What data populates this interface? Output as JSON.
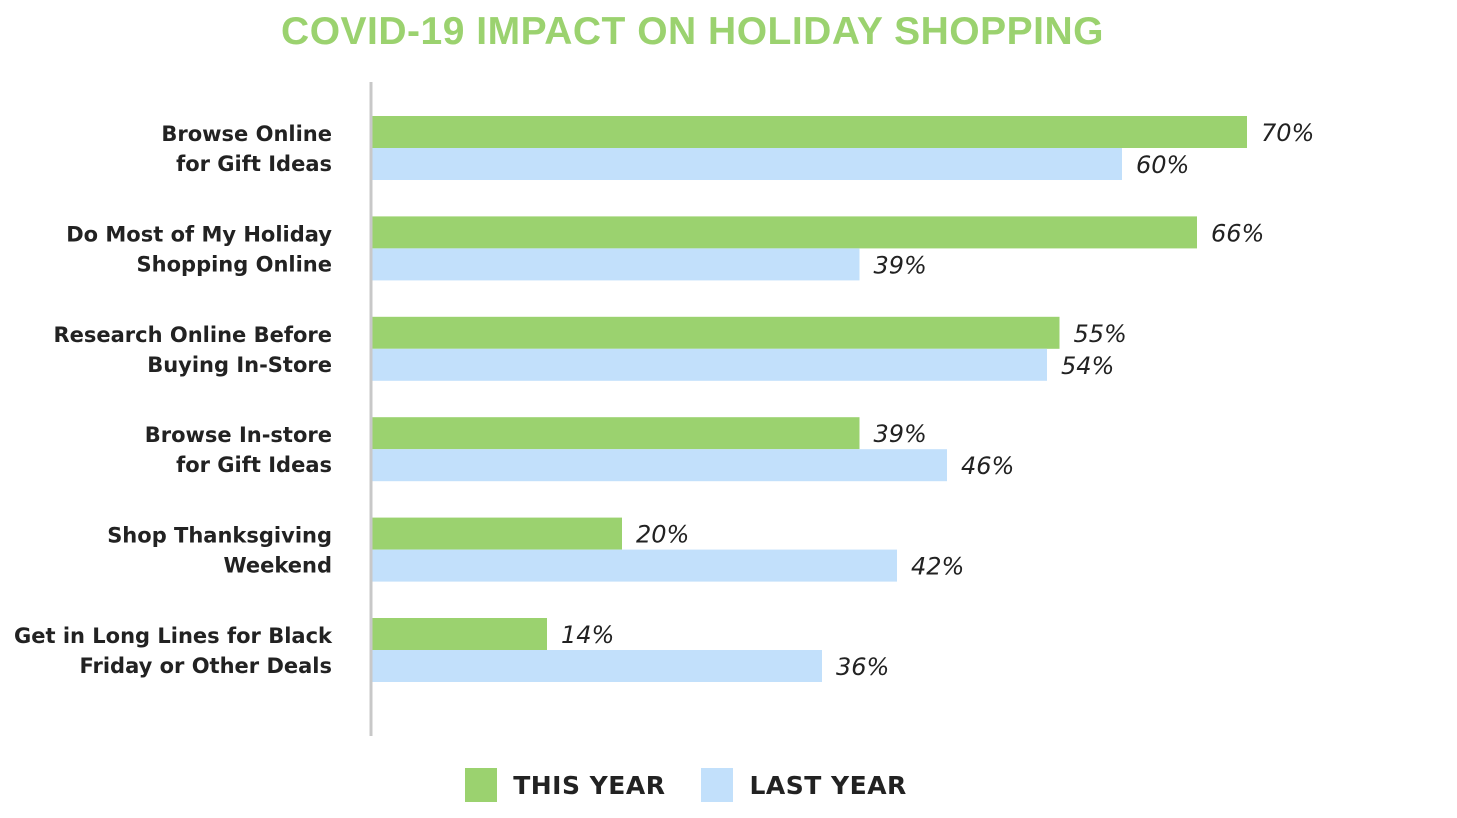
{
  "chart_data": {
    "type": "bar",
    "orientation": "horizontal",
    "title": "COVID-19 IMPACT ON HOLIDAY SHOPPING",
    "categories": [
      [
        "Browse Online",
        "for Gift Ideas"
      ],
      [
        "Do Most of My Holiday",
        "Shopping Online"
      ],
      [
        "Research Online Before",
        "Buying In-Store"
      ],
      [
        "Browse In-store",
        "for Gift Ideas"
      ],
      [
        "Shop Thanksgiving",
        "Weekend"
      ],
      [
        "Get in Long Lines for Black",
        "Friday or Other Deals"
      ]
    ],
    "series": [
      {
        "name": "THIS YEAR",
        "color": "#9bd26f",
        "values": [
          70,
          66,
          55,
          39,
          20,
          14
        ],
        "labels": [
          "70%",
          "66%",
          "55%",
          "39%",
          "20%",
          "14%"
        ]
      },
      {
        "name": "LAST YEAR",
        "color": "#c2e0fb",
        "values": [
          60,
          39,
          54,
          46,
          42,
          36
        ],
        "labels": [
          "60%",
          "39%",
          "54%",
          "46%",
          "42%",
          "36%"
        ]
      }
    ],
    "value_unit": "%",
    "xlim": [
      0,
      100
    ],
    "grid": false,
    "legend_position": "bottom"
  },
  "colors": {
    "title": "#9bd26f",
    "axis": "#c8c8c8",
    "text": "#222222"
  }
}
